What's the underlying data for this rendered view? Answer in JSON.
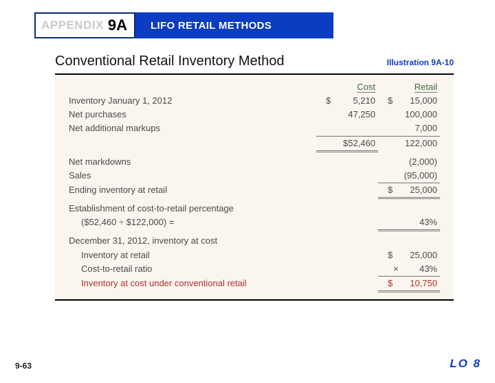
{
  "header": {
    "appendix_label": "APPENDIX",
    "appendix_number": "9A",
    "title": "LIFO RETAIL METHODS"
  },
  "subtitle": "Conventional Retail Inventory Method",
  "illustration": "Illustration 9A-10",
  "columns": {
    "cost": "Cost",
    "retail": "Retail"
  },
  "rows": {
    "inv_jan": {
      "label": "Inventory January 1, 2012",
      "cost": "5,210",
      "retail": "15,000"
    },
    "net_purchases": {
      "label": "Net purchases",
      "cost": "47,250",
      "retail": "100,000"
    },
    "net_markups": {
      "label": "Net additional markups",
      "retail": "7,000"
    },
    "subtotal": {
      "cost": "$52,460",
      "retail": "122,000"
    },
    "net_markdowns": {
      "label": "Net markdowns",
      "retail": "(2,000)"
    },
    "sales": {
      "label": "Sales",
      "retail": "(95,000)"
    },
    "ending_inv": {
      "label": "Ending inventory at retail",
      "retail": "25,000"
    },
    "estab1": {
      "label": "Establishment of cost-to-retail percentage"
    },
    "estab2": {
      "label": "($52,460 ÷ $122,000) =",
      "retail": "43%"
    },
    "dec31": {
      "label": "December 31, 2012, inventory at cost"
    },
    "inv_at_retail": {
      "label": "Inventory at retail",
      "retail": "25,000"
    },
    "ratio": {
      "label": "Cost-to-retail ratio",
      "retail": "43%"
    },
    "final": {
      "label": "Inventory at cost under conventional retail",
      "retail": "10,750"
    }
  },
  "footer": {
    "page": "9-63",
    "lo": "LO 8"
  }
}
